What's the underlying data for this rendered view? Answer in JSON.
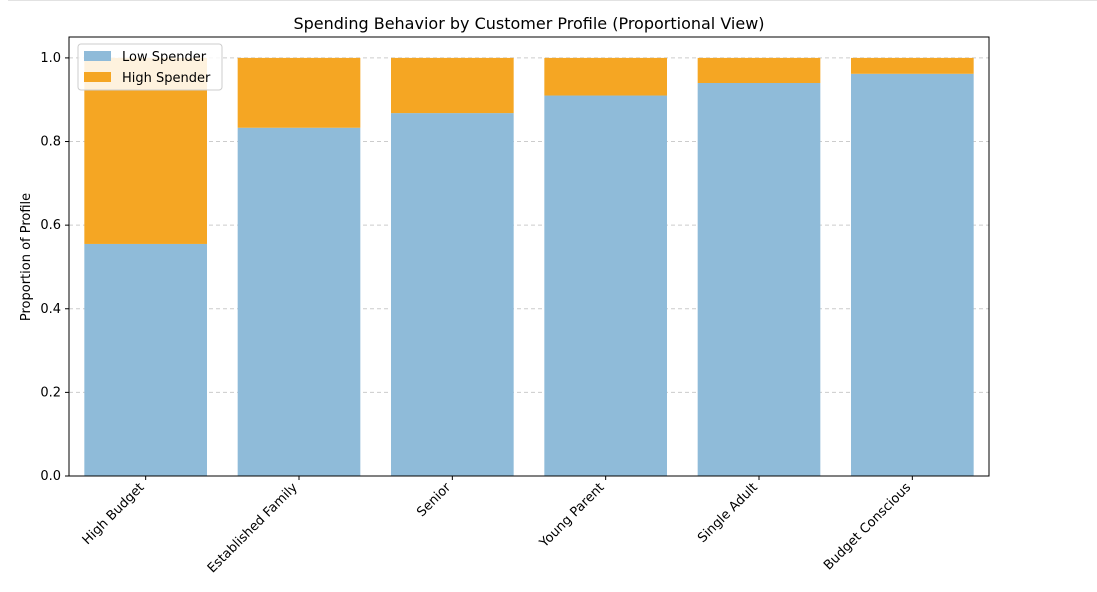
{
  "chart_data": {
    "type": "bar",
    "stacked": true,
    "title": "Spending Behavior by Customer Profile (Proportional View)",
    "xlabel": "",
    "ylabel": "Proportion of Profile",
    "ylim": [
      0,
      1.05
    ],
    "yticks": [
      "0.0",
      "0.2",
      "0.4",
      "0.6",
      "0.8",
      "1.0"
    ],
    "categories": [
      "High Budget",
      "Established Family",
      "Senior",
      "Young Parent",
      "Single Adult",
      "Budget Conscious"
    ],
    "series": [
      {
        "name": "Low Spender",
        "color": "#8fbbd9",
        "values": [
          0.555,
          0.833,
          0.868,
          0.91,
          0.94,
          0.962
        ]
      },
      {
        "name": "High Spender",
        "color": "#f5a623",
        "values": [
          0.445,
          0.167,
          0.132,
          0.09,
          0.06,
          0.038
        ]
      }
    ],
    "grid": "horizontal dashed",
    "legend": "top-left"
  }
}
